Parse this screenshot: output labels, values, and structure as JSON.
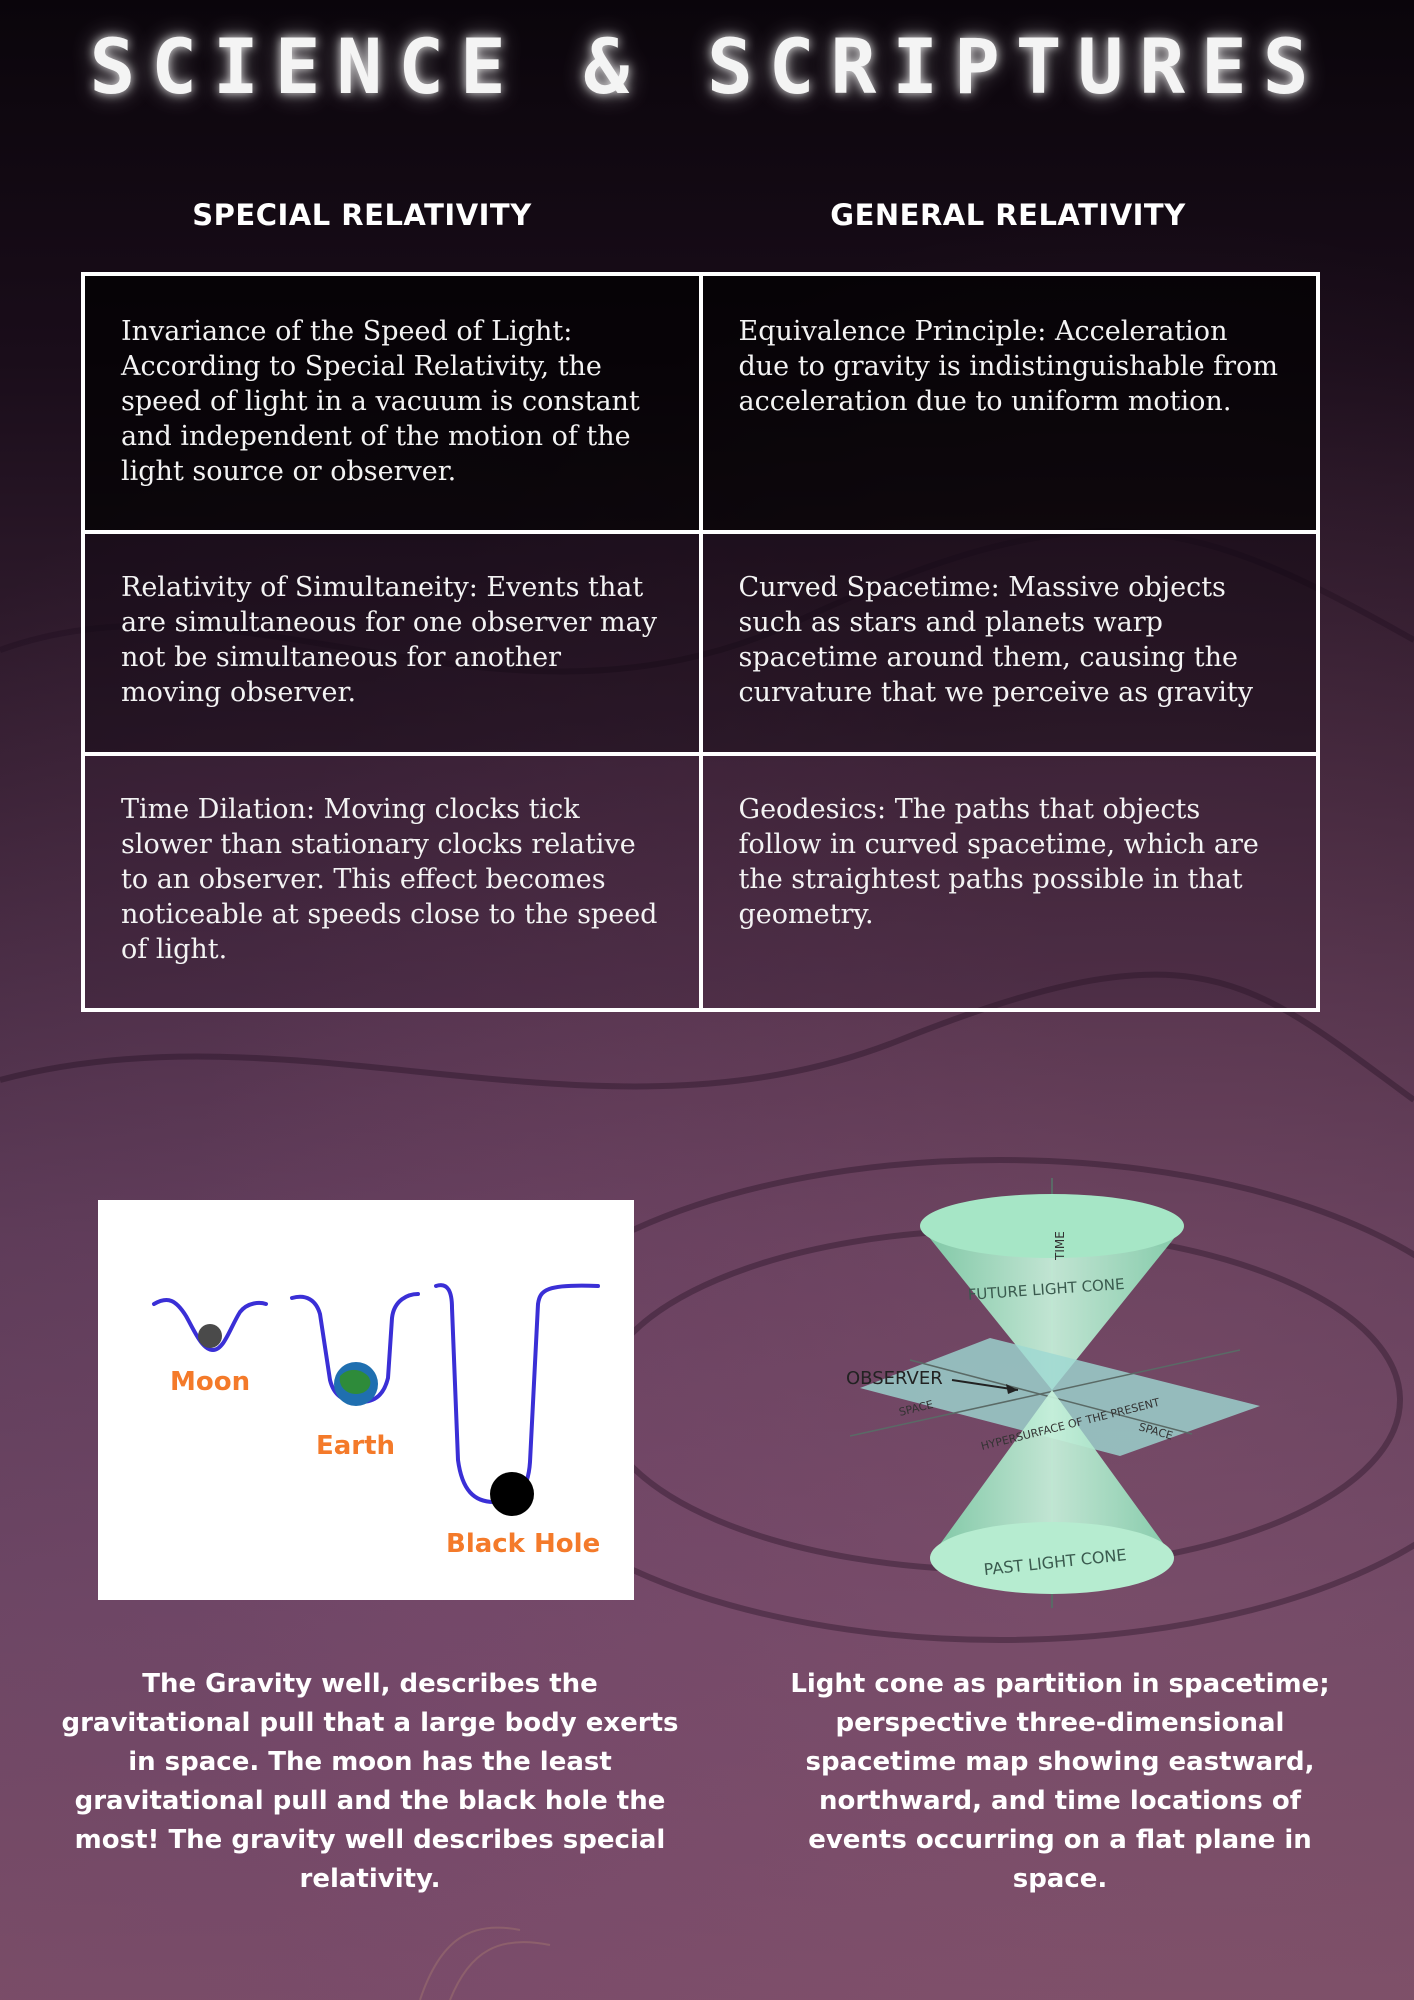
{
  "header": {
    "title": "SCIENCE & SCRIPTURES"
  },
  "columns": {
    "left_heading": "SPECIAL RELATIVITY",
    "right_heading": "GENERAL RELATIVITY"
  },
  "rows": [
    {
      "special": "Invariance of the Speed of Light: According to Special Relativity, the speed of light in a vacuum is constant and independent of the motion of the light source or observer.",
      "general": "Equivalence Principle: Acceleration due to gravity is indistinguishable from acceleration due to uniform motion."
    },
    {
      "special": "Relativity of Simultaneity: Events that are simultaneous for one observer may not be simultaneous for another moving observer.",
      "general": "Curved Spacetime: Massive objects such as stars and planets warp spacetime around them, causing the curvature that we perceive as gravity"
    },
    {
      "special": "Time Dilation: Moving clocks tick slower than stationary clocks relative to an observer. This effect becomes noticeable at speeds close to the speed of light.",
      "general": "Geodesics: The paths that objects follow in curved spacetime, which are the straightest paths possible in that geometry."
    }
  ],
  "gravity_well": {
    "labels": {
      "moon": "Moon",
      "earth": "Earth",
      "black_hole": "Black Hole"
    },
    "colors": {
      "well_line": "#3a2fd6",
      "label": "#f47a2a",
      "moon": "#4a4a4a",
      "earth_land": "#2e8b3a",
      "earth_sea": "#1f6fb0",
      "black_hole": "#000000"
    },
    "caption": "The Gravity well, describes the gravitational pull that a large body exerts in space. The moon has the least gravitational pull and the black hole the most! The gravity well describes special relativity."
  },
  "light_cone": {
    "labels": {
      "time": "TIME",
      "future": "FUTURE LIGHT CONE",
      "observer": "OBSERVER",
      "space_left": "SPACE",
      "space_right": "SPACE",
      "hypersurface": "HYPERSURFACE OF THE PRESENT",
      "past": "PAST LIGHT CONE"
    },
    "colors": {
      "cone": "#a6e6c6",
      "plane": "#9ed8d2"
    },
    "caption": "Light cone as partition in spacetime; perspective three-dimensional spacetime map showing eastward, northward, and time locations of events occurring on a flat plane in space."
  }
}
